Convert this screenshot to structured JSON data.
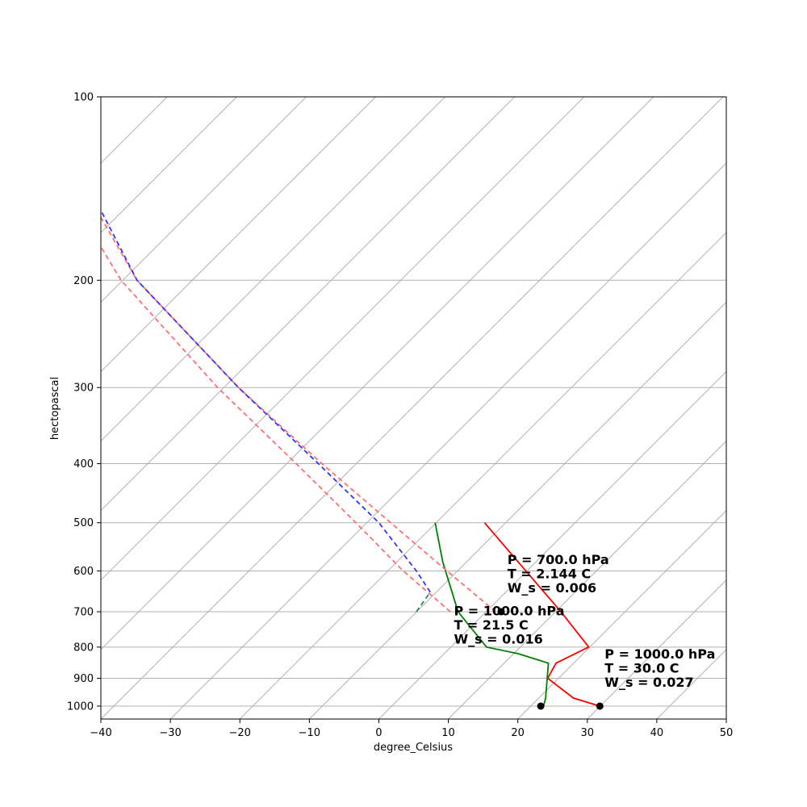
{
  "chart_data": {
    "type": "line",
    "title": "",
    "xlabel": "degree_Celsius",
    "ylabel": "hectopascal",
    "xlim": [
      -40,
      50
    ],
    "ylim": [
      1050,
      100
    ],
    "y_scale": "log",
    "skew_description": "skew-T log-P diagram; isotherms skewed diagonally",
    "x_ticks": [
      -40,
      -30,
      -20,
      -10,
      0,
      10,
      20,
      30,
      40,
      50
    ],
    "x_tick_labels": [
      "−40",
      "−30",
      "−20",
      "−10",
      "0",
      "10",
      "20",
      "30",
      "40",
      "50"
    ],
    "y_ticks": [
      100,
      200,
      300,
      400,
      500,
      600,
      700,
      800,
      900,
      1000
    ],
    "y_tick_labels": [
      "100",
      "200",
      "300",
      "400",
      "500",
      "600",
      "700",
      "800",
      "900",
      "1000"
    ],
    "grid": true,
    "colors": {
      "temperature": "#ff0000",
      "dewpoint": "#008000",
      "parcel_dashed": "#ff7070",
      "moist_dashed": "#3333ff",
      "dewpoint_dashed": "#2e8b57",
      "grid": "#b0b0b0",
      "marker": "#000000"
    },
    "series": [
      {
        "kind": "temperature",
        "style": "solid",
        "points": [
          {
            "p": 1000,
            "x": 31.8
          },
          {
            "p": 970,
            "x": 28
          },
          {
            "p": 900,
            "x": 24.3
          },
          {
            "p": 850,
            "x": 25.5
          },
          {
            "p": 800,
            "x": 30.2
          },
          {
            "p": 700,
            "x": 26.2
          },
          {
            "p": 500,
            "x": 15.2
          }
        ]
      },
      {
        "kind": "dewpoint",
        "style": "solid",
        "points": [
          {
            "p": 1000,
            "x": 23.7
          },
          {
            "p": 970,
            "x": 24
          },
          {
            "p": 850,
            "x": 24.4
          },
          {
            "p": 820,
            "x": 20
          },
          {
            "p": 800,
            "x": 15.5
          },
          {
            "p": 700,
            "x": 11.4
          },
          {
            "p": 580,
            "x": 9.2
          },
          {
            "p": 500,
            "x": 8.1
          }
        ]
      },
      {
        "kind": "parcel_dashed",
        "style": "dashed",
        "points": [
          {
            "p": 700,
            "x": 16.8
          },
          {
            "p": 600,
            "x": 9.8
          },
          {
            "p": 500,
            "x": 1.7
          },
          {
            "p": 400,
            "x": -8.2
          },
          {
            "p": 300,
            "x": -20.2
          },
          {
            "p": 200,
            "x": -34.8
          },
          {
            "p": 150,
            "x": -41.1
          }
        ]
      },
      {
        "kind": "parcel_dashed",
        "style": "dashed",
        "points": [
          {
            "p": 700,
            "x": 10.3
          },
          {
            "p": 600,
            "x": 3.5
          },
          {
            "p": 500,
            "x": -3.3
          },
          {
            "p": 400,
            "x": -11.9
          },
          {
            "p": 300,
            "x": -23.2
          },
          {
            "p": 200,
            "x": -37.1
          },
          {
            "p": 148,
            "x": -44
          }
        ]
      },
      {
        "kind": "moist_dashed",
        "style": "dashed",
        "points": [
          {
            "p": 650,
            "x": 7.4
          },
          {
            "p": 600,
            "x": 5.4
          },
          {
            "p": 500,
            "x": 0
          },
          {
            "p": 400,
            "x": -8.7
          },
          {
            "p": 300,
            "x": -20.2
          },
          {
            "p": 200,
            "x": -34.8
          },
          {
            "p": 146,
            "x": -41
          }
        ]
      },
      {
        "kind": "dewpoint_dashed",
        "style": "dashed",
        "points": [
          {
            "p": 700,
            "x": 5.4
          },
          {
            "p": 650,
            "x": 7.4
          }
        ]
      }
    ],
    "markers": [
      {
        "p": 700,
        "x": 17.6
      },
      {
        "p": 1000,
        "x": 23.3
      },
      {
        "p": 1000,
        "x": 31.8
      }
    ],
    "annotations": [
      {
        "anchor": {
          "p": 700,
          "x": 18.5
        },
        "lines": [
          "P = 700.0 hPa",
          "T = 2.144 C",
          "W_s = 0.006"
        ]
      },
      {
        "anchor": {
          "p": 1000,
          "x": 32.5
        },
        "lines": [
          "P = 1000.0 hPa",
          "T = 30.0 C",
          "W_s = 0.027"
        ]
      },
      {
        "anchor": {
          "p": 850,
          "x": 10.8
        },
        "lines": [
          "P = 1000.0 hPa",
          "T = 21.5 C",
          "W_s = 0.016"
        ]
      }
    ]
  }
}
